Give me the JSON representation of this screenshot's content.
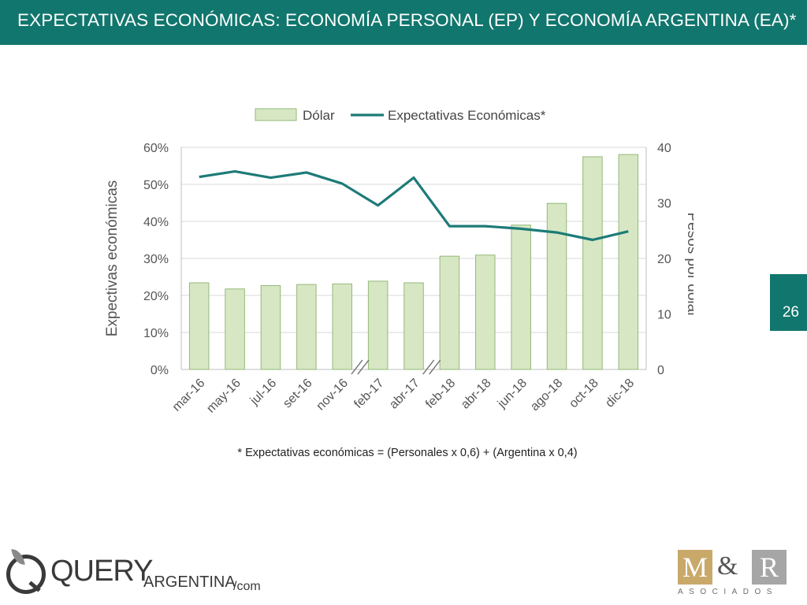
{
  "header": {
    "title": "EXPECTATIVAS ECONÓMICAS: ECONOMÍA PERSONAL (EP) Y ECONOMÍA ARGENTINA (EA)*"
  },
  "page": {
    "number": "26"
  },
  "footnote": "* Expectativas económicas = (Personales x 0,6) + (Argentina x 0,4)",
  "brand": {
    "big": "QUERY",
    "mid": "ARGENTINA",
    "small": "/com"
  },
  "partner": {
    "m": "M",
    "amp": "&",
    "r": "R",
    "sub": "ASOCIADOS"
  },
  "colors": {
    "header": "#11766d",
    "bar_fill": "#d7e7c4",
    "bar_stroke": "#93b978",
    "line": "#1d7b78",
    "grid": "#d9d9d9",
    "axis_text": "#555555"
  },
  "chart_data": {
    "type": "bar",
    "categories": [
      "mar-16",
      "may-16",
      "jul-16",
      "set-16",
      "nov-16",
      "feb-17",
      "abr-17",
      "feb-18",
      "abr-18",
      "jun-18",
      "ago-18",
      "oct-18",
      "dic-18"
    ],
    "series": [
      {
        "name": "Dólar",
        "type": "bar",
        "axis": "right",
        "values": [
          15.6,
          14.5,
          15.1,
          15.3,
          15.4,
          15.9,
          15.6,
          20.4,
          20.6,
          26.0,
          29.9,
          38.3,
          38.7
        ]
      },
      {
        "name": "Expectativas Económicas*",
        "type": "line",
        "axis": "left",
        "values": [
          0.52,
          0.535,
          0.518,
          0.532,
          0.502,
          0.443,
          0.518,
          0.387,
          0.387,
          0.38,
          0.37,
          0.35,
          0.373
        ]
      }
    ],
    "ylabel": "Expectivas económicas",
    "y2label": "Pesos por dólar",
    "ylim": [
      0,
      0.6
    ],
    "y2lim": [
      0,
      40
    ],
    "yticks": [
      "0%",
      "10%",
      "20%",
      "30%",
      "40%",
      "50%",
      "60%"
    ],
    "y2ticks": [
      "0",
      "10",
      "20",
      "30",
      "40"
    ],
    "grid": true,
    "legend": "top"
  }
}
